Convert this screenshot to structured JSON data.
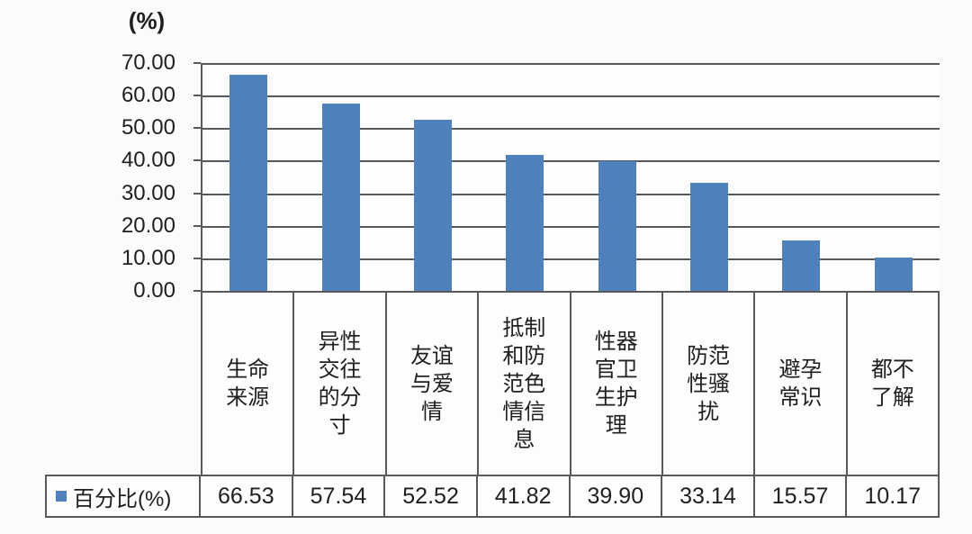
{
  "unit_label": "(%)",
  "legend": {
    "label": "百分比(%)",
    "swatch_color": "#4f81bd"
  },
  "chart_data": {
    "type": "bar",
    "title": "",
    "xlabel": "",
    "ylabel": "(%)",
    "categories": [
      "生命来源",
      "异性交往的分寸",
      "友谊与爱情",
      "抵制和防范色情信息",
      "性器官卫生护理",
      "防范性骚扰",
      "避孕常识",
      "都不了解"
    ],
    "series": [
      {
        "name": "百分比(%)",
        "values": [
          66.53,
          57.54,
          52.52,
          41.82,
          39.9,
          33.14,
          15.57,
          10.17
        ],
        "value_labels": [
          "66.53",
          "57.54",
          "52.52",
          "41.82",
          "39.90",
          "33.14",
          "15.57",
          "10.17"
        ]
      }
    ],
    "ylim": [
      0,
      70
    ],
    "ytick_labels": [
      "70.00",
      "60.00",
      "50.00",
      "40.00",
      "30.00",
      "20.00",
      "10.00",
      "0.00"
    ],
    "grid": true,
    "legend_position": "bottom-table",
    "bar_color": "#4f81bd",
    "grid_color": "#595959"
  }
}
